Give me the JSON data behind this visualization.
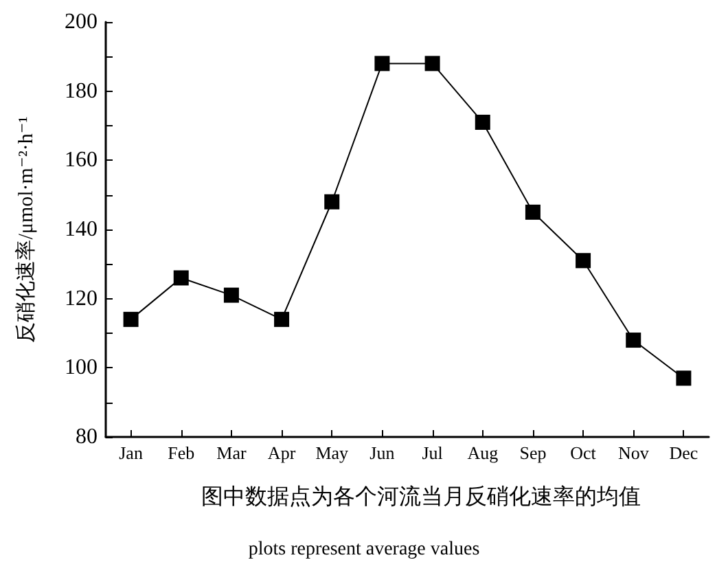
{
  "chart_data": {
    "type": "line",
    "ylabel": "反硝化速率/μmol·m⁻²·h⁻¹",
    "xlabel": "图中数据点为各个河流当月反硝化速率的均值",
    "annotations": [
      "plots represent average values"
    ],
    "categories": [
      "Jan",
      "Feb",
      "Mar",
      "Apr",
      "May",
      "Jun",
      "Jul",
      "Aug",
      "Sep",
      "Oct",
      "Nov",
      "Dec"
    ],
    "series": [
      {
        "color": "#000000",
        "values": [
          114,
          126,
          121,
          114,
          148,
          188,
          188,
          171,
          145,
          131,
          108,
          97
        ]
      }
    ],
    "ylim": [
      80,
      200
    ],
    "yticks": [
      80,
      {
        "value": 90,
        "label": null
      },
      100,
      {
        "value": 110,
        "label": null
      },
      120,
      {
        "value": 130,
        "label": null
      },
      140,
      {
        "value": 150,
        "label": null
      },
      160,
      {
        "value": 170,
        "label": null
      },
      180,
      {
        "value": 190,
        "label": null
      },
      200
    ],
    "marker": "square",
    "line_style": "solid",
    "grid": false
  }
}
